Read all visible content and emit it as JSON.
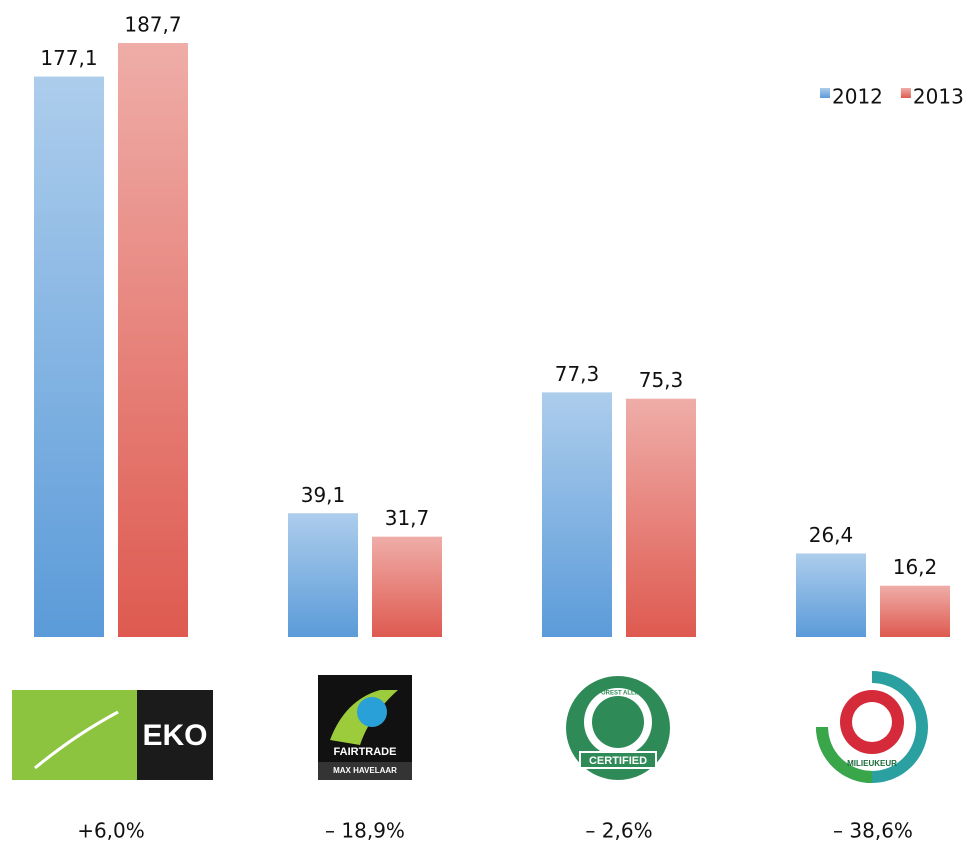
{
  "chart_data": {
    "type": "bar",
    "categories": [
      null,
      null,
      null,
      null
    ],
    "series": [
      {
        "name": "2012",
        "color": "#5b9bd9",
        "values": [
          177.1,
          39.1,
          77.3,
          26.4
        ],
        "value_labels": [
          "177,1",
          "39,1",
          "77,3",
          "26,4"
        ]
      },
      {
        "name": "2013",
        "color": "#de5a50",
        "values": [
          187.7,
          31.7,
          75.3,
          16.2
        ],
        "value_labels": [
          "187,7",
          "31,7",
          "75,3",
          "16,2"
        ]
      }
    ],
    "annotations": [
      "+6,0%",
      "– 18,9%",
      "– 2,6%",
      "– 38,6%"
    ],
    "legend": "top-right"
  },
  "logos": [
    {
      "texts": [
        "EKO"
      ]
    },
    {
      "texts": [
        "FAIRTRADE",
        "MAX HAVELAAR"
      ]
    },
    {
      "texts": [
        "RAINFOREST ALLIANCE",
        "CERTIFIED"
      ]
    },
    {
      "texts": [
        "MILIEUKEUR"
      ]
    }
  ]
}
